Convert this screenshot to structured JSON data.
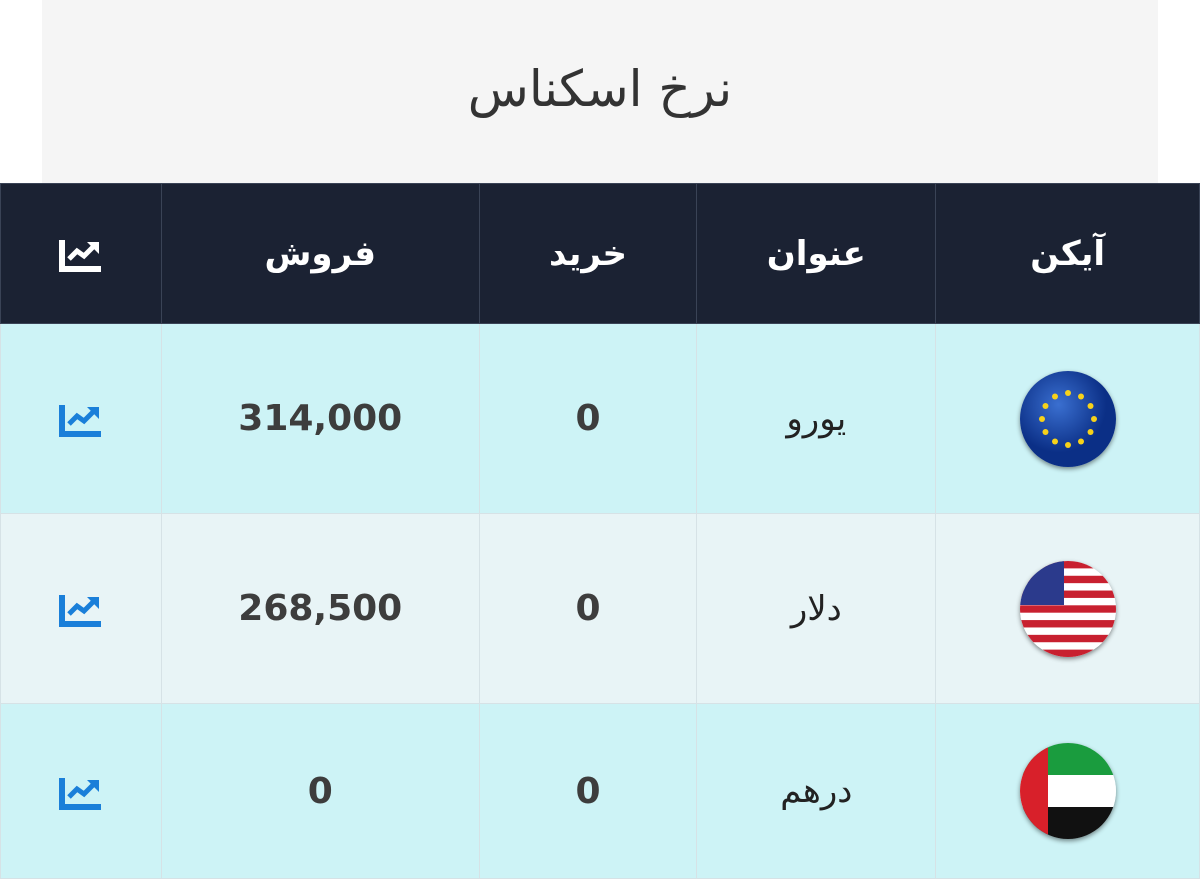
{
  "title": "نرخ اسکناس",
  "columns": [
    "آیکن",
    "عنوان",
    "خرید",
    "فروش",
    "chart-icon"
  ],
  "rows": [
    {
      "icon": "eu-flag-icon",
      "name": "یورو",
      "buy": "0",
      "sell": "314,000"
    },
    {
      "icon": "us-flag-icon",
      "name": "دلار",
      "buy": "0",
      "sell": "268,500"
    },
    {
      "icon": "uae-flag-icon",
      "name": "درهم",
      "buy": "0",
      "sell": "0"
    }
  ],
  "colors": {
    "header_bg": "#1b2233",
    "row_cyan": "#cdf3f6",
    "row_light": "#e8f4f6",
    "chart_icon": "#1a7fd9"
  }
}
